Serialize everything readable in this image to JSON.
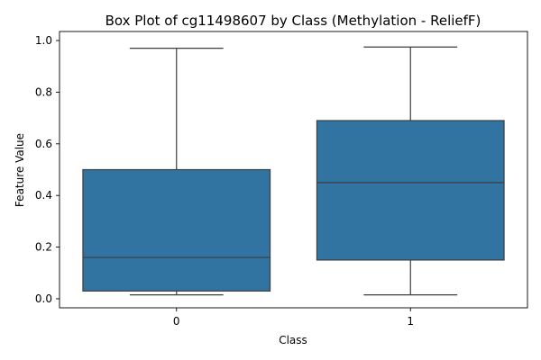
{
  "chart_data": {
    "type": "box",
    "title": "Box Plot of cg11498607 by Class (Methylation - ReliefF)",
    "xlabel": "Class",
    "ylabel": "Feature Value",
    "categories": [
      "0",
      "1"
    ],
    "boxes": [
      {
        "category": "0",
        "whisker_low": 0.015,
        "q1": 0.03,
        "median": 0.16,
        "q3": 0.5,
        "whisker_high": 0.97
      },
      {
        "category": "1",
        "whisker_low": 0.015,
        "q1": 0.15,
        "median": 0.45,
        "q3": 0.69,
        "whisker_high": 0.975
      }
    ],
    "ylim": [
      -0.035,
      1.035
    ],
    "yticks": [
      0.0,
      0.2,
      0.4,
      0.6,
      0.8,
      1.0
    ],
    "ytick_labels": [
      "0.0",
      "0.2",
      "0.4",
      "0.6",
      "0.8",
      "1.0"
    ],
    "grid": false,
    "colors": {
      "box_fill": "#3274a1",
      "line": "#3d3d3d",
      "axis": "#000000"
    }
  }
}
